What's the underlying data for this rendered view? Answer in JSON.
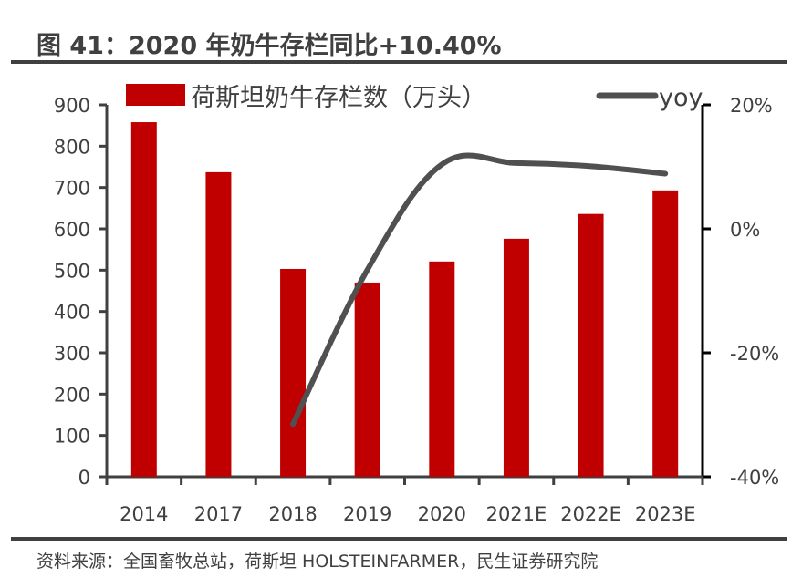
{
  "title": "图 41：2020 年奶牛存栏同比+10.40%",
  "source": "资料来源：全国畜牧总站，荷斯坦 HOLSTEINFARMER，民生证券研究院",
  "colors": {
    "bar": "#C00000",
    "line": "#505050",
    "axis": "#404040",
    "text": "#404040"
  },
  "legend": {
    "bar_label": "荷斯坦奶牛存栏数（万头）",
    "line_label": "yoy"
  },
  "chart_data": {
    "type": "bar",
    "title": "图 41：2020 年奶牛存栏同比+10.40%",
    "categories": [
      "2014",
      "2017",
      "2018",
      "2019",
      "2020",
      "2021E",
      "2022E",
      "2023E"
    ],
    "series": [
      {
        "name": "荷斯坦奶牛存栏数（万头）",
        "type": "bar",
        "axis": "left",
        "values": [
          858,
          737,
          503,
          470,
          521,
          576,
          636,
          693
        ]
      },
      {
        "name": "yoy",
        "type": "line",
        "axis": "right",
        "unit": "%",
        "values": [
          null,
          null,
          -31.5,
          -6.6,
          10.4,
          10.6,
          10.1,
          8.9
        ]
      }
    ],
    "left_axis": {
      "ylim": [
        0,
        900
      ],
      "ticks": [
        "0",
        "100",
        "200",
        "300",
        "400",
        "500",
        "600",
        "700",
        "800",
        "900"
      ]
    },
    "right_axis": {
      "ylim": [
        -40,
        20
      ],
      "ticks": [
        "-40%",
        "-20%",
        "0%",
        "20%"
      ]
    },
    "xlabel": "",
    "ylabel": "",
    "grid": false,
    "legend_position": "top"
  }
}
